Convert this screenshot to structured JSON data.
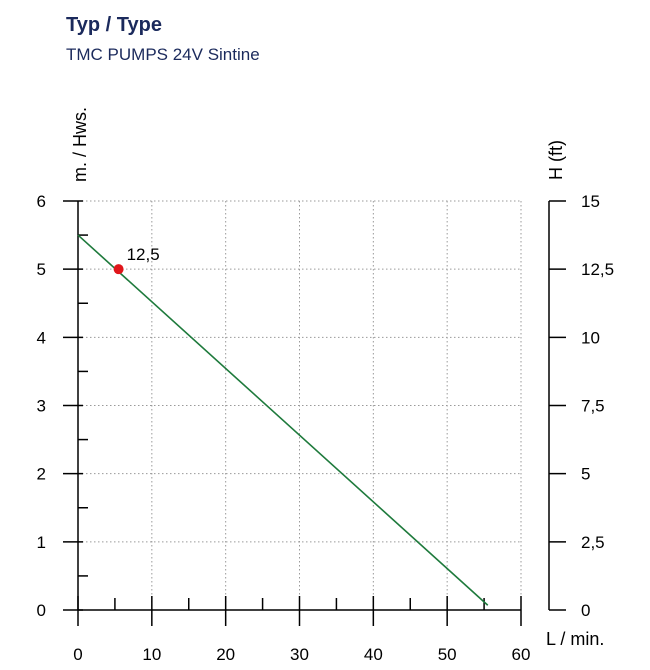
{
  "header": {
    "title": "Typ / Type",
    "subtitle": "TMC PUMPS 24V Sintine"
  },
  "chart_data": {
    "type": "line",
    "xlabel": "L / min.",
    "ylabel_left": "m. / Hws.",
    "ylabel_right": "H (ft)",
    "xlim": [
      0,
      60
    ],
    "ylim_left": [
      0,
      6
    ],
    "ylim_right": [
      0,
      15
    ],
    "x_ticks": [
      "0",
      "10",
      "20",
      "30",
      "40",
      "50",
      "60"
    ],
    "y_ticks_left": [
      "0",
      "1",
      "2",
      "3",
      "4",
      "5",
      "6"
    ],
    "y_ticks_right": [
      "0",
      "2,5",
      "5",
      "7,5",
      "10",
      "12,5",
      "15"
    ],
    "grid": true,
    "line_color": "#1e7a3c",
    "marker_color": "#e0161b",
    "series": [
      {
        "x": [
          0,
          55.5
        ],
        "y": [
          5.5,
          0.07
        ]
      }
    ],
    "annotations": [
      {
        "x": 5.5,
        "y": 5.0,
        "text": "12,5"
      }
    ]
  }
}
